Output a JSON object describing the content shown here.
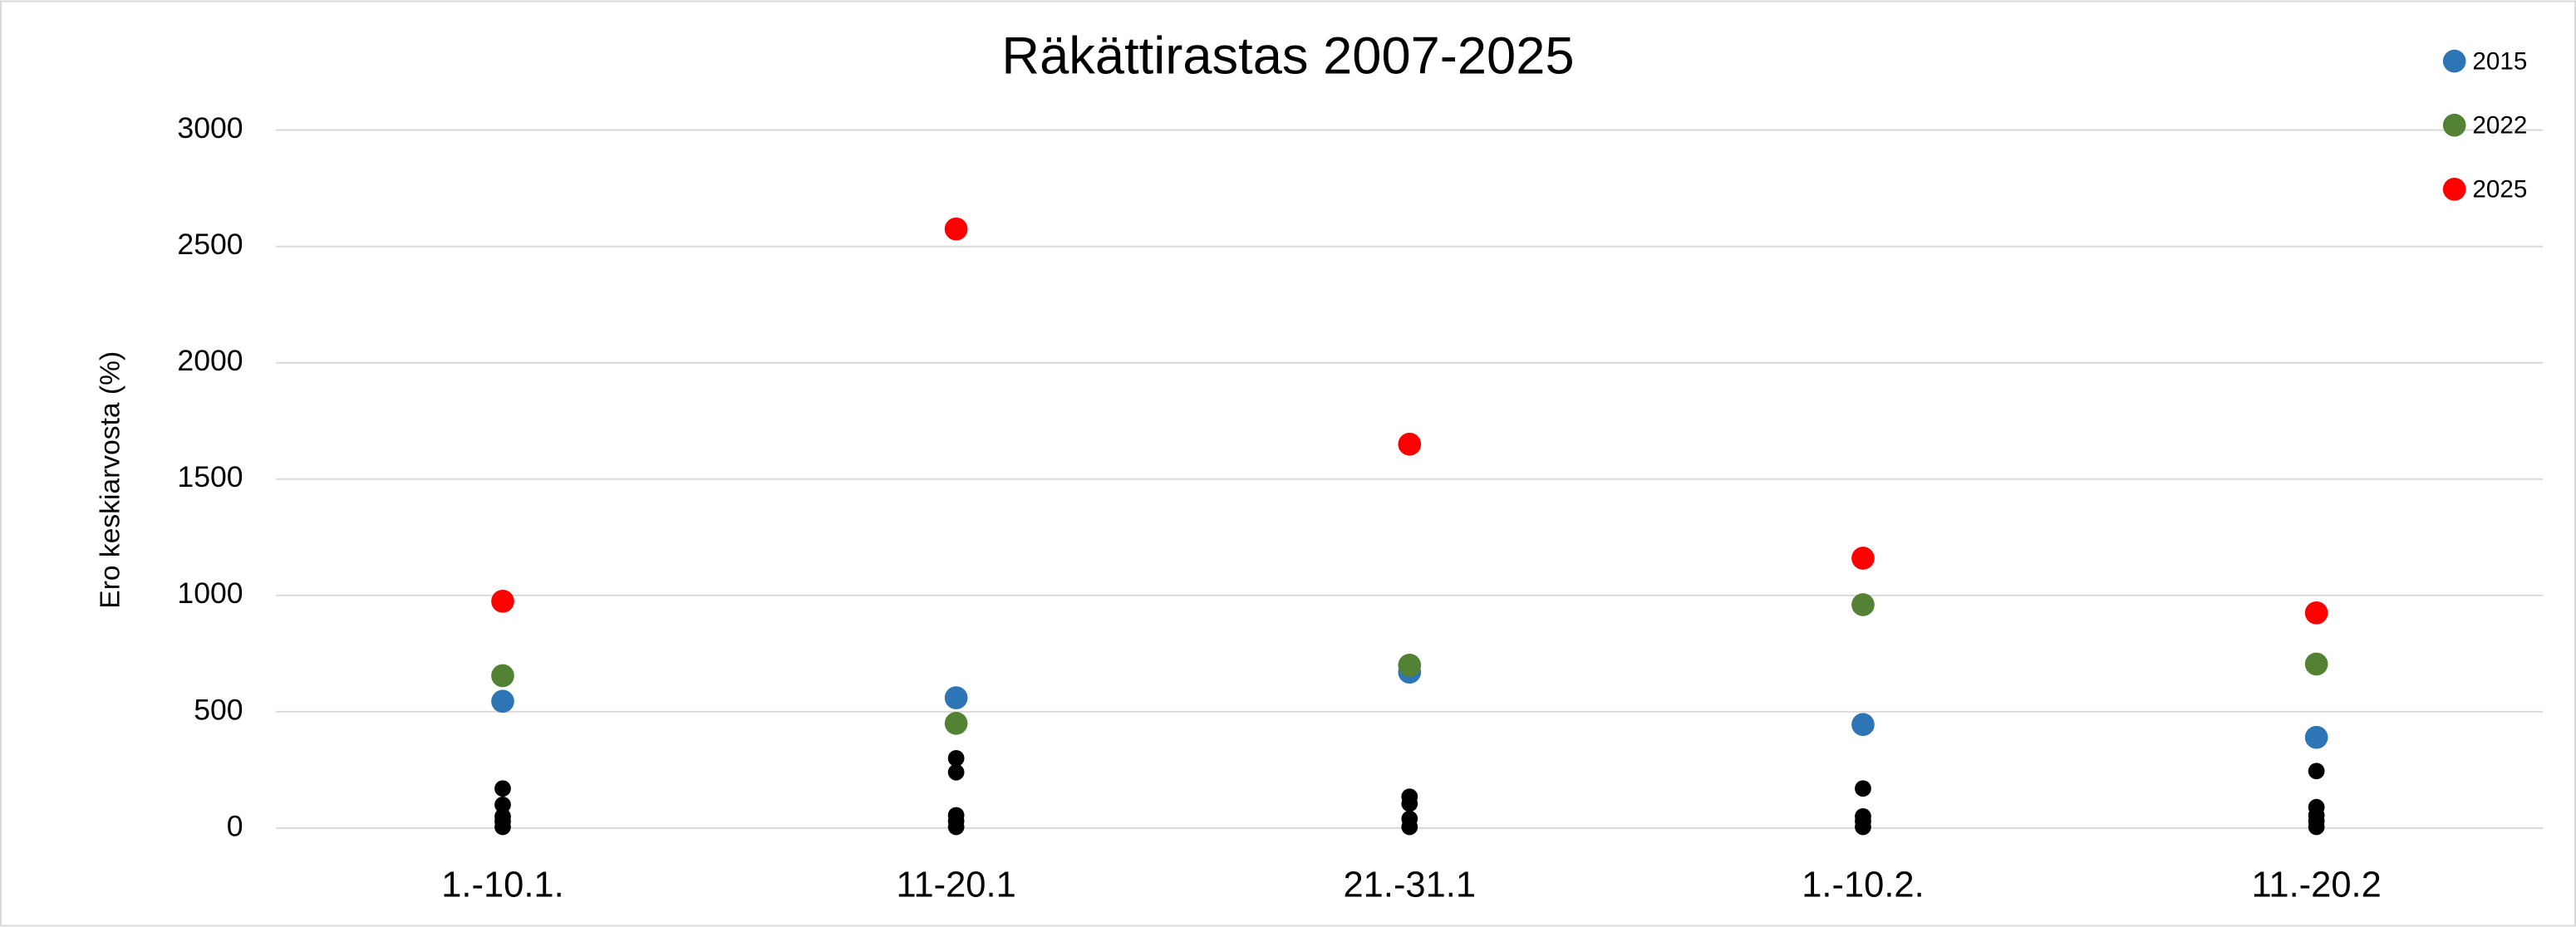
{
  "chart_data": {
    "type": "scatter",
    "title": "Räkättirastas 2007-2025",
    "y_label": "Ero keskiarvosta (%)",
    "categories": [
      "1.-10.1.",
      "11-20.1",
      "21.-31.1",
      "1.-10.2.",
      "11.-20.2"
    ],
    "series": [
      {
        "name": "2015",
        "color": "#2e75b6",
        "values": [
          545,
          560,
          670,
          445,
          390
        ]
      },
      {
        "name": "2022",
        "color": "#548235",
        "values": [
          655,
          450,
          700,
          960,
          705
        ]
      },
      {
        "name": "2025",
        "color": "#ff0000",
        "values": [
          975,
          2575,
          1650,
          1160,
          925
        ]
      }
    ],
    "other_color": "#000000",
    "other_values": [
      [
        170,
        100,
        50,
        30,
        5
      ],
      [
        300,
        240,
        55,
        30,
        5
      ],
      [
        135,
        105,
        40,
        5
      ],
      [
        170,
        50,
        30,
        5
      ],
      [
        245,
        90,
        55,
        30,
        5
      ]
    ],
    "ylim": [
      0,
      3000
    ],
    "yticks": [
      0,
      500,
      1000,
      1500,
      2000,
      2500,
      3000
    ],
    "grid": true,
    "legend": "top-right"
  }
}
